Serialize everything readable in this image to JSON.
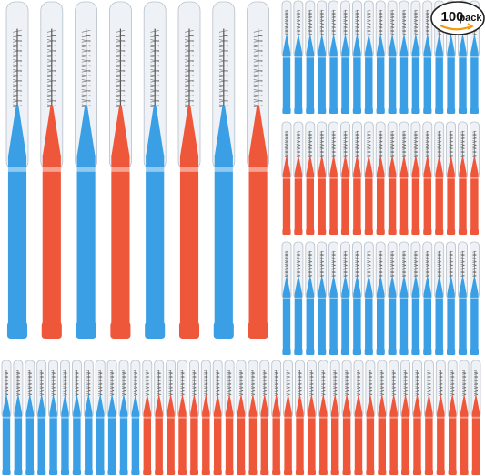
{
  "badge": {
    "number": "100",
    "label": "pack"
  }
}
